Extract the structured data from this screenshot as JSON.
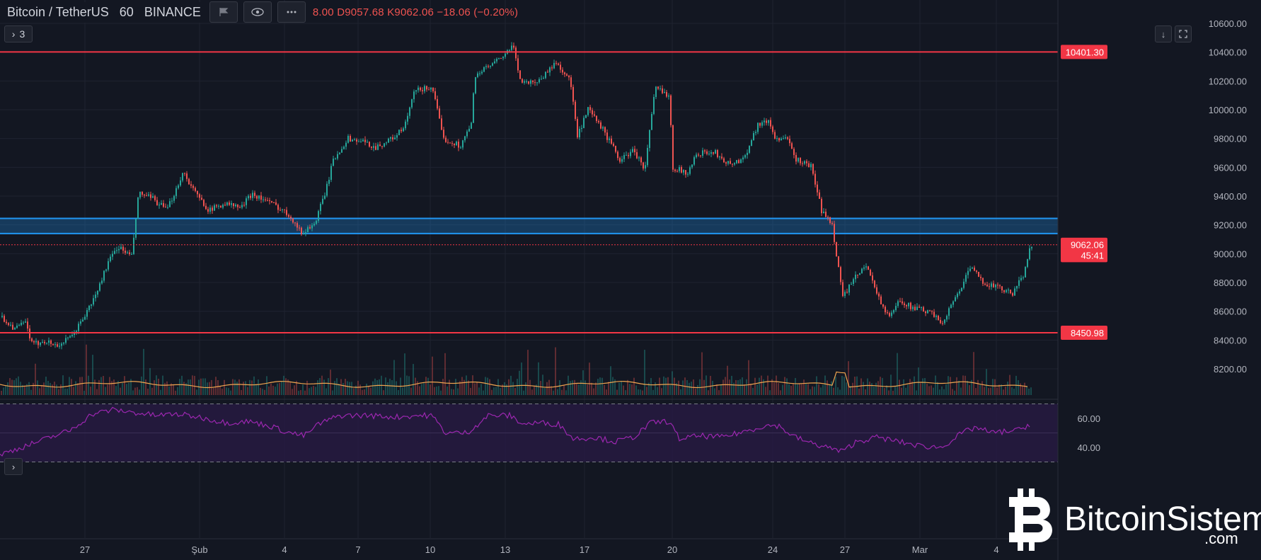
{
  "header": {
    "symbol_label": "Bitcoin / TetherUS",
    "interval": "60",
    "exchange": "BINANCE",
    "ohlc_text": "8.00  D9057.68  K9062.06  −18.06 (−0.20%)",
    "collapsed_count": "3",
    "collapse_icon": "chevron-right-icon",
    "eye_icon": "eye-icon",
    "more_icon": "more-dots-icon",
    "flag_icon": "flag-icon"
  },
  "price_axis": {
    "ticks": [
      "10600.00",
      "10400.00",
      "10200.00",
      "10000.00",
      "9800.00",
      "9600.00",
      "9400.00",
      "9200.00",
      "9000.00",
      "8800.00",
      "8600.00",
      "8400.00",
      "8200.00"
    ],
    "price_labels": [
      {
        "text": "10401.30",
        "value": 10401.3,
        "color": "#f23645"
      },
      {
        "text": "9062.06",
        "value": 9062.06,
        "color": "#f23645"
      },
      {
        "text": "45:41",
        "value": 8990,
        "color": "#f23645"
      },
      {
        "text": "8450.98",
        "value": 8450.98,
        "color": "#f23645"
      }
    ]
  },
  "rsi_axis": {
    "ticks": [
      "60.00",
      "40.00"
    ]
  },
  "time_axis": {
    "labels": [
      "27",
      "Şub",
      "4",
      "7",
      "10",
      "13",
      "17",
      "20",
      "24",
      "27",
      "Mar",
      "4"
    ]
  },
  "chart_data": {
    "type": "candlestick",
    "symbol": "BTCUSDT",
    "ylim": [
      8050,
      10700
    ],
    "horizontal_lines": [
      {
        "price": 10401.3,
        "color": "#f23645"
      },
      {
        "price": 8450.98,
        "color": "#f23645"
      },
      {
        "price": 9062.06,
        "color": "#f23645",
        "style": "dotted"
      }
    ],
    "zone": {
      "low": 9140,
      "high": 9245,
      "color": "#2196f3"
    },
    "price_path": [
      [
        0,
        8560
      ],
      [
        20,
        8480
      ],
      [
        35,
        8520
      ],
      [
        45,
        8360
      ],
      [
        60,
        8400
      ],
      [
        80,
        8360
      ],
      [
        100,
        8420
      ],
      [
        120,
        8580
      ],
      [
        135,
        8720
      ],
      [
        150,
        8920
      ],
      [
        165,
        9050
      ],
      [
        185,
        8980
      ],
      [
        195,
        9420
      ],
      [
        215,
        9380
      ],
      [
        235,
        9300
      ],
      [
        258,
        9570
      ],
      [
        275,
        9420
      ],
      [
        295,
        9300
      ],
      [
        315,
        9350
      ],
      [
        340,
        9320
      ],
      [
        355,
        9420
      ],
      [
        370,
        9380
      ],
      [
        390,
        9330
      ],
      [
        410,
        9260
      ],
      [
        425,
        9140
      ],
      [
        445,
        9220
      ],
      [
        460,
        9450
      ],
      [
        470,
        9650
      ],
      [
        490,
        9800
      ],
      [
        510,
        9780
      ],
      [
        530,
        9740
      ],
      [
        550,
        9790
      ],
      [
        570,
        9870
      ],
      [
        585,
        10130
      ],
      [
        610,
        10160
      ],
      [
        625,
        9800
      ],
      [
        650,
        9750
      ],
      [
        665,
        9900
      ],
      [
        670,
        10240
      ],
      [
        700,
        10330
      ],
      [
        725,
        10440
      ],
      [
        735,
        10190
      ],
      [
        760,
        10200
      ],
      [
        785,
        10330
      ],
      [
        805,
        10200
      ],
      [
        815,
        9810
      ],
      [
        830,
        10000
      ],
      [
        850,
        9870
      ],
      [
        875,
        9650
      ],
      [
        895,
        9720
      ],
      [
        910,
        9580
      ],
      [
        925,
        10150
      ],
      [
        945,
        10100
      ],
      [
        950,
        9600
      ],
      [
        970,
        9560
      ],
      [
        985,
        9700
      ],
      [
        1010,
        9700
      ],
      [
        1030,
        9620
      ],
      [
        1050,
        9660
      ],
      [
        1070,
        9900
      ],
      [
        1085,
        9920
      ],
      [
        1095,
        9800
      ],
      [
        1110,
        9800
      ],
      [
        1125,
        9650
      ],
      [
        1145,
        9610
      ],
      [
        1160,
        9300
      ],
      [
        1175,
        9200
      ],
      [
        1190,
        8700
      ],
      [
        1210,
        8850
      ],
      [
        1225,
        8920
      ],
      [
        1240,
        8700
      ],
      [
        1255,
        8550
      ],
      [
        1270,
        8680
      ],
      [
        1290,
        8620
      ],
      [
        1310,
        8600
      ],
      [
        1330,
        8520
      ],
      [
        1350,
        8700
      ],
      [
        1370,
        8900
      ],
      [
        1390,
        8800
      ],
      [
        1410,
        8760
      ],
      [
        1430,
        8720
      ],
      [
        1445,
        8850
      ],
      [
        1455,
        9062
      ]
    ],
    "volume_ma_color": "#f0a550",
    "rsi_levels": [
      70,
      30
    ],
    "rsi_path": [
      [
        0,
        35
      ],
      [
        30,
        40
      ],
      [
        60,
        45
      ],
      [
        100,
        52
      ],
      [
        130,
        63
      ],
      [
        160,
        66
      ],
      [
        190,
        64
      ],
      [
        220,
        62
      ],
      [
        250,
        63
      ],
      [
        280,
        61
      ],
      [
        320,
        57
      ],
      [
        350,
        58
      ],
      [
        380,
        55
      ],
      [
        410,
        50
      ],
      [
        430,
        48
      ],
      [
        450,
        56
      ],
      [
        480,
        62
      ],
      [
        520,
        62
      ],
      [
        560,
        61
      ],
      [
        590,
        62
      ],
      [
        610,
        62
      ],
      [
        630,
        50
      ],
      [
        660,
        50
      ],
      [
        690,
        62
      ],
      [
        720,
        62
      ],
      [
        740,
        56
      ],
      [
        760,
        57
      ],
      [
        790,
        56
      ],
      [
        810,
        46
      ],
      [
        840,
        47
      ],
      [
        870,
        44
      ],
      [
        895,
        47
      ],
      [
        920,
        57
      ],
      [
        945,
        58
      ],
      [
        960,
        46
      ],
      [
        990,
        48
      ],
      [
        1020,
        47
      ],
      [
        1060,
        52
      ],
      [
        1080,
        55
      ],
      [
        1100,
        55
      ],
      [
        1120,
        48
      ],
      [
        1145,
        43
      ],
      [
        1170,
        40
      ],
      [
        1190,
        37
      ],
      [
        1210,
        44
      ],
      [
        1240,
        47
      ],
      [
        1270,
        44
      ],
      [
        1300,
        41
      ],
      [
        1330,
        40
      ],
      [
        1360,
        50
      ],
      [
        1380,
        54
      ],
      [
        1400,
        50
      ],
      [
        1420,
        51
      ],
      [
        1440,
        52
      ],
      [
        1455,
        56
      ]
    ]
  },
  "watermark": {
    "brand": "BitcoinSistemi",
    "tld": ".com",
    "logo_icon": "bitcoin-logo-icon"
  },
  "toolbar_right": {
    "download_icon": "arrow-down-icon",
    "fullscreen_icon": "fullscreen-icon"
  }
}
